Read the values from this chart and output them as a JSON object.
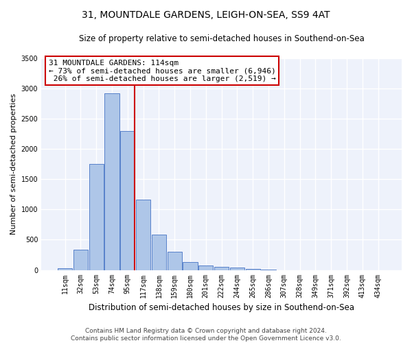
{
  "title": "31, MOUNTDALE GARDENS, LEIGH-ON-SEA, SS9 4AT",
  "subtitle": "Size of property relative to semi-detached houses in Southend-on-Sea",
  "xlabel": "Distribution of semi-detached houses by size in Southend-on-Sea",
  "ylabel": "Number of semi-detached properties",
  "categories": [
    "11sqm",
    "32sqm",
    "53sqm",
    "74sqm",
    "95sqm",
    "117sqm",
    "138sqm",
    "159sqm",
    "180sqm",
    "201sqm",
    "222sqm",
    "244sqm",
    "265sqm",
    "286sqm",
    "307sqm",
    "328sqm",
    "349sqm",
    "371sqm",
    "392sqm",
    "413sqm",
    "434sqm"
  ],
  "values": [
    30,
    340,
    1750,
    2920,
    2300,
    1160,
    590,
    300,
    130,
    70,
    55,
    45,
    20,
    5,
    0,
    0,
    0,
    0,
    0,
    0,
    0
  ],
  "bar_color": "#aec6e8",
  "bar_edge_color": "#4472c4",
  "vline_color": "#cc0000",
  "annotation_line1": "31 MOUNTDALE GARDENS: 114sqm",
  "annotation_line2": "← 73% of semi-detached houses are smaller (6,946)",
  "annotation_line3": " 26% of semi-detached houses are larger (2,519) →",
  "annotation_box_color": "#ffffff",
  "annotation_box_edge": "#cc0000",
  "ylim": [
    0,
    3500
  ],
  "yticks": [
    0,
    500,
    1000,
    1500,
    2000,
    2500,
    3000,
    3500
  ],
  "background_color": "#eef2fb",
  "grid_color": "#ffffff",
  "footer": "Contains HM Land Registry data © Crown copyright and database right 2024.\nContains public sector information licensed under the Open Government Licence v3.0.",
  "title_fontsize": 10,
  "subtitle_fontsize": 8.5,
  "xlabel_fontsize": 8.5,
  "ylabel_fontsize": 8,
  "tick_fontsize": 7,
  "annotation_fontsize": 8,
  "footer_fontsize": 6.5
}
